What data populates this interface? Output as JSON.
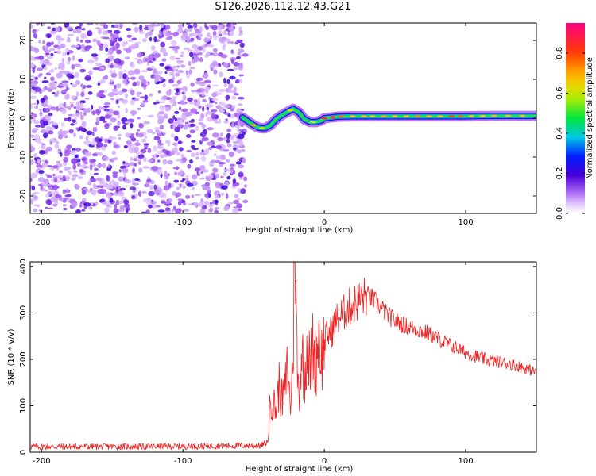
{
  "title": "S126.2026.112.12.43.G21",
  "chart_data": [
    {
      "type": "heatmap",
      "title": "S126.2026.112.12.43.G21",
      "xlabel": "Height of straight line (km)",
      "ylabel": "Frequency (Hz)",
      "xlim": [
        -208,
        150
      ],
      "ylim": [
        -24.5,
        24.5
      ],
      "xticks": [
        -200,
        -100,
        0,
        100
      ],
      "yticks": [
        -20,
        -10,
        0,
        10,
        20
      ],
      "noise_region_x": [
        -208,
        -58
      ],
      "signal_track": {
        "x": [
          -58,
          -54,
          -50,
          -46,
          -42,
          -38,
          -34,
          -30,
          -26,
          -22,
          -18,
          -14,
          -10,
          -6,
          -2,
          0,
          10,
          20,
          40,
          60,
          80,
          100,
          120,
          150
        ],
        "freq": [
          0.2,
          -0.8,
          -1.8,
          -2.5,
          -2.6,
          -1.8,
          -0.2,
          0.8,
          1.6,
          2.4,
          1.5,
          -0.3,
          -1.0,
          -1.0,
          -0.6,
          0.0,
          0.4,
          0.5,
          0.5,
          0.5,
          0.5,
          0.5,
          0.6,
          0.6
        ]
      },
      "colorbar": {
        "label": "Normalized spectral amplitude",
        "range": [
          0.0,
          0.95
        ],
        "ticks": [
          0.0,
          0.2,
          0.4,
          0.6,
          0.8
        ],
        "tick_labels": [
          "0.0",
          "0.2",
          "0.4",
          "0.6",
          "0.8"
        ]
      }
    },
    {
      "type": "line",
      "xlabel": "Height of straight line (km)",
      "ylabel": "SNR (10 * v/v)",
      "xlim": [
        -208,
        150
      ],
      "ylim": [
        0,
        410
      ],
      "xticks": [
        -200,
        -100,
        0,
        100
      ],
      "yticks": [
        0,
        100,
        200,
        300,
        400
      ],
      "color": "#ee2222",
      "series": [
        {
          "name": "SNR",
          "x": [
            -208,
            -180,
            -150,
            -120,
            -90,
            -60,
            -45,
            -40,
            -38,
            -36,
            -34,
            -32,
            -30,
            -28,
            -26,
            -24,
            -22,
            -21,
            -20,
            -19,
            -18,
            -16,
            -14,
            -12,
            -10,
            -8,
            -6,
            -4,
            -2,
            0,
            2,
            5,
            8,
            10,
            14,
            18,
            22,
            26,
            30,
            34,
            38,
            42,
            46,
            50,
            56,
            62,
            68,
            74,
            80,
            86,
            92,
            98,
            104,
            110,
            116,
            122,
            128,
            134,
            140,
            146,
            150
          ],
          "y": [
            12,
            12,
            12,
            12,
            13,
            14,
            14,
            22,
            118,
            105,
            92,
            145,
            110,
            128,
            185,
            95,
            215,
            410,
            305,
            175,
            122,
            225,
            155,
            255,
            170,
            238,
            185,
            268,
            200,
            240,
            252,
            258,
            282,
            288,
            300,
            313,
            322,
            330,
            337,
            330,
            318,
            305,
            292,
            283,
            274,
            268,
            262,
            255,
            245,
            235,
            226,
            218,
            210,
            203,
            198,
            195,
            192,
            188,
            183,
            177,
            172
          ]
        }
      ]
    }
  ]
}
